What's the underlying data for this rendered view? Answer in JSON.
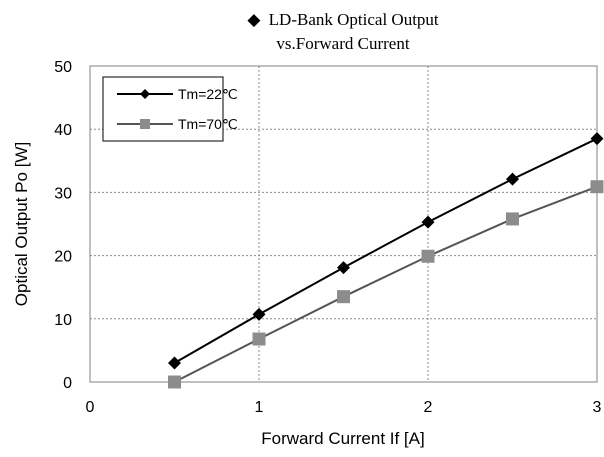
{
  "chart_data": {
    "type": "line",
    "title_symbol": "◆",
    "title_line1": "LD-Bank Optical Output",
    "title_line2": "vs.Forward Current",
    "xlabel": "Forward Current If [A]",
    "ylabel": "Optical Output Po [W]",
    "xlim": [
      0,
      3
    ],
    "ylim": [
      0,
      50
    ],
    "xticks": [
      "0",
      "1",
      "2",
      "3"
    ],
    "yticks": [
      "0",
      "10",
      "20",
      "30",
      "40",
      "50"
    ],
    "grid": true,
    "legend_position": "top-left",
    "x": [
      0.5,
      1.0,
      1.5,
      2.0,
      2.5,
      3.0
    ],
    "series": [
      {
        "name": "Tm=22℃",
        "marker": "diamond",
        "color": "#000000",
        "values": [
          3.0,
          10.7,
          18.1,
          25.3,
          32.1,
          38.5
        ]
      },
      {
        "name": "Tm=70℃",
        "marker": "square",
        "color": "#555555",
        "marker_color": "#8c8c8c",
        "values": [
          0.0,
          6.8,
          13.5,
          19.9,
          25.8,
          30.9
        ]
      }
    ]
  }
}
